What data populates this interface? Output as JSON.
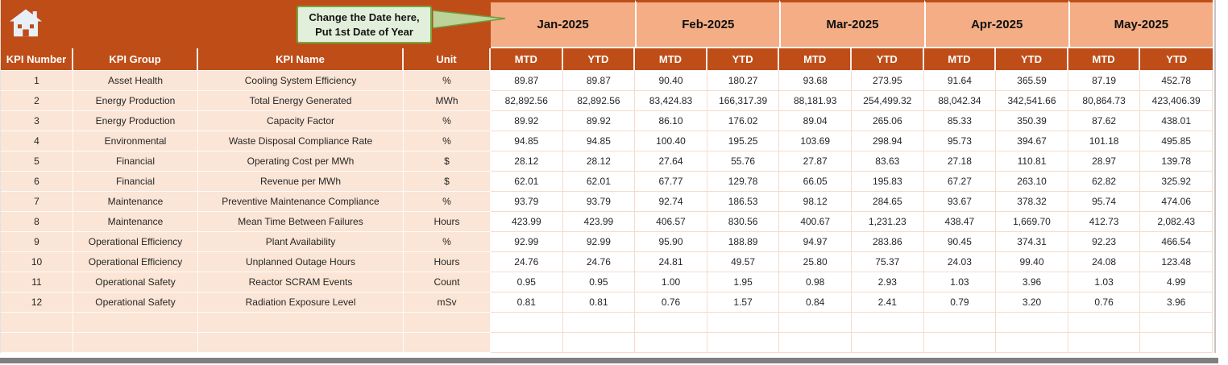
{
  "header": {
    "callout": {
      "line1": "Change the Date here,",
      "line2": "Put 1st Date of Year"
    },
    "months": [
      "Jan-2025",
      "Feb-2025",
      "Mar-2025",
      "Apr-2025",
      "May-2025"
    ],
    "sub_columns": {
      "mtd": "MTD",
      "ytd": "YTD"
    },
    "columns": [
      "KPI Number",
      "KPI Group",
      "KPI Name",
      "Unit"
    ]
  },
  "rows": [
    {
      "number": "1",
      "group": "Asset Health",
      "name": "Cooling System Efficiency",
      "unit": "%",
      "values": [
        "89.87",
        "89.87",
        "90.40",
        "180.27",
        "93.68",
        "273.95",
        "91.64",
        "365.59",
        "87.19",
        "452.78"
      ]
    },
    {
      "number": "2",
      "group": "Energy Production",
      "name": "Total Energy Generated",
      "unit": "MWh",
      "values": [
        "82,892.56",
        "82,892.56",
        "83,424.83",
        "166,317.39",
        "88,181.93",
        "254,499.32",
        "88,042.34",
        "342,541.66",
        "80,864.73",
        "423,406.39"
      ]
    },
    {
      "number": "3",
      "group": "Energy Production",
      "name": "Capacity Factor",
      "unit": "%",
      "values": [
        "89.92",
        "89.92",
        "86.10",
        "176.02",
        "89.04",
        "265.06",
        "85.33",
        "350.39",
        "87.62",
        "438.01"
      ]
    },
    {
      "number": "4",
      "group": "Environmental",
      "name": "Waste Disposal Compliance Rate",
      "unit": "%",
      "values": [
        "94.85",
        "94.85",
        "100.40",
        "195.25",
        "103.69",
        "298.94",
        "95.73",
        "394.67",
        "101.18",
        "495.85"
      ]
    },
    {
      "number": "5",
      "group": "Financial",
      "name": "Operating Cost per MWh",
      "unit": "$",
      "values": [
        "28.12",
        "28.12",
        "27.64",
        "55.76",
        "27.87",
        "83.63",
        "27.18",
        "110.81",
        "28.97",
        "139.78"
      ]
    },
    {
      "number": "6",
      "group": "Financial",
      "name": "Revenue per MWh",
      "unit": "$",
      "values": [
        "62.01",
        "62.01",
        "67.77",
        "129.78",
        "66.05",
        "195.83",
        "67.27",
        "263.10",
        "62.82",
        "325.92"
      ]
    },
    {
      "number": "7",
      "group": "Maintenance",
      "name": "Preventive Maintenance Compliance",
      "unit": "%",
      "values": [
        "93.79",
        "93.79",
        "92.74",
        "186.53",
        "98.12",
        "284.65",
        "93.67",
        "378.32",
        "95.74",
        "474.06"
      ]
    },
    {
      "number": "8",
      "group": "Maintenance",
      "name": "Mean Time Between Failures",
      "unit": "Hours",
      "values": [
        "423.99",
        "423.99",
        "406.57",
        "830.56",
        "400.67",
        "1,231.23",
        "438.47",
        "1,669.70",
        "412.73",
        "2,082.43"
      ]
    },
    {
      "number": "9",
      "group": "Operational Efficiency",
      "name": "Plant Availability",
      "unit": "%",
      "values": [
        "92.99",
        "92.99",
        "95.90",
        "188.89",
        "94.97",
        "283.86",
        "90.45",
        "374.31",
        "92.23",
        "466.54"
      ]
    },
    {
      "number": "10",
      "group": "Operational Efficiency",
      "name": "Unplanned Outage Hours",
      "unit": "Hours",
      "values": [
        "24.76",
        "24.76",
        "24.81",
        "49.57",
        "25.80",
        "75.37",
        "24.03",
        "99.40",
        "24.08",
        "123.48"
      ]
    },
    {
      "number": "11",
      "group": "Operational Safety",
      "name": "Reactor SCRAM Events",
      "unit": "Count",
      "values": [
        "0.95",
        "0.95",
        "1.00",
        "1.95",
        "0.98",
        "2.93",
        "1.03",
        "3.96",
        "1.03",
        "4.99"
      ]
    },
    {
      "number": "12",
      "group": "Operational Safety",
      "name": "Radiation Exposure Level",
      "unit": "mSv",
      "values": [
        "0.81",
        "0.81",
        "0.76",
        "1.57",
        "0.84",
        "2.41",
        "0.79",
        "3.20",
        "0.76",
        "3.96"
      ]
    }
  ],
  "icons": {
    "home": "home-icon"
  },
  "colors": {
    "header_rust": "#BF4D18",
    "month_salmon": "#F4AD84",
    "row_peach": "#FBE5D6",
    "callout_fill": "#E2EFDA",
    "callout_border": "#76A73F",
    "gridline": "#F4DCCC",
    "window_bar_gray": "#7F7F7F"
  }
}
